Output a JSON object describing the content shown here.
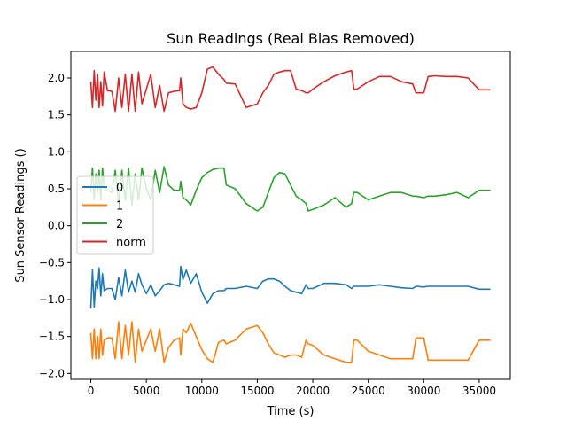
{
  "chart_data": {
    "type": "line",
    "title": "Sun Readings (Real Bias Removed)",
    "xlabel": "Time (s)",
    "ylabel": "Sun Sensor Readings ()",
    "xlim": [
      -1800,
      37800
    ],
    "ylim": [
      -2.08,
      2.36
    ],
    "x_ticks": [
      0,
      5000,
      10000,
      15000,
      20000,
      25000,
      30000,
      35000
    ],
    "x_tick_labels": [
      "0",
      "5000",
      "10000",
      "15000",
      "20000",
      "25000",
      "30000",
      "35000"
    ],
    "y_ticks": [
      -2.0,
      -1.5,
      -1.0,
      -0.5,
      0.0,
      0.5,
      1.0,
      1.5,
      2.0
    ],
    "y_tick_labels": [
      "−2.0",
      "−1.5",
      "−1.0",
      "−0.5",
      "0.0",
      "0.5",
      "1.0",
      "1.5",
      "2.0"
    ],
    "grid": false,
    "legend_position": "center-left",
    "series": [
      {
        "name": "0",
        "color": "#1f77b4",
        "x": [
          0,
          150,
          300,
          450,
          600,
          750,
          900,
          1050,
          1200,
          1500,
          1900,
          2200,
          2500,
          2800,
          3100,
          3400,
          3700,
          4000,
          4300,
          4600,
          5000,
          5400,
          5800,
          6200,
          6600,
          7000,
          7500,
          8000,
          8100,
          8300,
          8600,
          9000,
          9500,
          10000,
          10500,
          11000,
          11500,
          12000,
          12200,
          13000,
          14000,
          15000,
          15500,
          16000,
          16500,
          17000,
          17500,
          18000,
          18500,
          19000,
          19400,
          19600,
          20000,
          21000,
          22000,
          23000,
          23500,
          23700,
          24000,
          25000,
          26000,
          27000,
          28000,
          29000,
          29300,
          30000,
          30400,
          31000,
          32000,
          33000,
          34000,
          35000,
          36000
        ],
        "y": [
          -1.12,
          -0.6,
          -1.1,
          -0.75,
          -0.85,
          -0.57,
          -0.95,
          -0.65,
          -0.88,
          -0.85,
          -0.85,
          -1.0,
          -0.7,
          -0.95,
          -0.6,
          -0.9,
          -0.75,
          -0.9,
          -0.65,
          -0.8,
          -0.92,
          -0.8,
          -0.95,
          -0.88,
          -0.8,
          -0.78,
          -0.8,
          -0.82,
          -0.55,
          -0.73,
          -0.6,
          -0.78,
          -0.65,
          -0.9,
          -1.05,
          -0.92,
          -0.88,
          -0.88,
          -0.85,
          -0.85,
          -0.82,
          -0.85,
          -0.75,
          -0.72,
          -0.72,
          -0.75,
          -0.82,
          -0.88,
          -0.9,
          -0.92,
          -0.8,
          -0.85,
          -0.85,
          -0.78,
          -0.78,
          -0.8,
          -0.85,
          -0.82,
          -0.82,
          -0.82,
          -0.8,
          -0.82,
          -0.84,
          -0.85,
          -0.82,
          -0.83,
          -0.82,
          -0.82,
          -0.82,
          -0.82,
          -0.82,
          -0.86,
          -0.86
        ]
      },
      {
        "name": "1",
        "color": "#ff7f0e",
        "x": [
          0,
          150,
          300,
          450,
          600,
          750,
          900,
          1050,
          1200,
          1500,
          1900,
          2200,
          2500,
          2800,
          3100,
          3400,
          3700,
          4000,
          4300,
          4600,
          5000,
          5400,
          5800,
          6200,
          6600,
          7000,
          7500,
          8000,
          8100,
          8300,
          8600,
          9000,
          9500,
          10000,
          10500,
          11000,
          11500,
          12000,
          12200,
          13000,
          14000,
          15000,
          15500,
          16000,
          16500,
          17000,
          17500,
          18000,
          18500,
          19000,
          19400,
          19600,
          20000,
          21000,
          22000,
          23000,
          23500,
          23700,
          24000,
          25000,
          26000,
          27000,
          28000,
          29000,
          29300,
          30000,
          30400,
          31000,
          32000,
          33000,
          34000,
          35000,
          36000
        ],
        "y": [
          -1.45,
          -1.8,
          -1.4,
          -1.8,
          -1.5,
          -1.8,
          -1.4,
          -1.75,
          -1.55,
          -1.52,
          -1.52,
          -1.8,
          -1.3,
          -1.8,
          -1.35,
          -1.75,
          -1.3,
          -1.85,
          -1.4,
          -1.7,
          -1.55,
          -1.4,
          -1.7,
          -1.4,
          -1.85,
          -1.65,
          -1.55,
          -1.52,
          -1.75,
          -1.4,
          -1.45,
          -1.32,
          -1.5,
          -1.68,
          -1.8,
          -1.85,
          -1.58,
          -1.55,
          -1.6,
          -1.55,
          -1.4,
          -1.35,
          -1.45,
          -1.6,
          -1.72,
          -1.75,
          -1.78,
          -1.75,
          -1.75,
          -1.78,
          -1.55,
          -1.6,
          -1.62,
          -1.75,
          -1.8,
          -1.85,
          -1.85,
          -1.55,
          -1.55,
          -1.7,
          -1.75,
          -1.8,
          -1.8,
          -1.8,
          -1.52,
          -1.52,
          -1.82,
          -1.82,
          -1.82,
          -1.82,
          -1.82,
          -1.55,
          -1.55
        ]
      },
      {
        "name": "2",
        "color": "#2ca02c",
        "x": [
          0,
          150,
          300,
          450,
          600,
          750,
          900,
          1050,
          1200,
          1500,
          1900,
          2200,
          2500,
          2800,
          3100,
          3400,
          3700,
          4000,
          4300,
          4600,
          5000,
          5400,
          5800,
          6200,
          6600,
          7000,
          7500,
          8000,
          8100,
          8300,
          8600,
          9000,
          9500,
          10000,
          10500,
          11000,
          11500,
          12000,
          12200,
          13000,
          14000,
          15000,
          15500,
          16000,
          16500,
          17000,
          17500,
          18000,
          18500,
          19000,
          19400,
          19600,
          20000,
          21000,
          22000,
          23000,
          23500,
          23700,
          24000,
          25000,
          26000,
          27000,
          28000,
          29000,
          29300,
          30000,
          30400,
          31000,
          32000,
          33000,
          34000,
          35000,
          36000
        ],
        "y": [
          0.45,
          0.78,
          0.35,
          0.7,
          0.45,
          0.75,
          0.35,
          0.78,
          0.5,
          0.48,
          0.45,
          0.75,
          0.3,
          0.75,
          0.35,
          0.78,
          0.28,
          0.7,
          0.35,
          0.78,
          0.5,
          0.35,
          0.75,
          0.45,
          0.8,
          0.55,
          0.48,
          0.48,
          0.6,
          0.38,
          0.35,
          0.28,
          0.48,
          0.65,
          0.72,
          0.76,
          0.78,
          0.78,
          0.55,
          0.5,
          0.3,
          0.2,
          0.25,
          0.45,
          0.65,
          0.72,
          0.7,
          0.55,
          0.4,
          0.35,
          0.3,
          0.2,
          0.22,
          0.28,
          0.38,
          0.25,
          0.3,
          0.45,
          0.45,
          0.35,
          0.4,
          0.45,
          0.45,
          0.4,
          0.4,
          0.38,
          0.4,
          0.4,
          0.42,
          0.45,
          0.38,
          0.48,
          0.48
        ]
      },
      {
        "name": "norm",
        "color": "#d62728",
        "x": [
          0,
          150,
          300,
          450,
          600,
          750,
          900,
          1050,
          1200,
          1500,
          1900,
          2200,
          2500,
          2800,
          3100,
          3400,
          3700,
          4000,
          4300,
          4600,
          5000,
          5400,
          5800,
          6200,
          6600,
          7000,
          7500,
          8000,
          8100,
          8300,
          8600,
          9000,
          9500,
          10000,
          10500,
          11000,
          11500,
          12000,
          12200,
          13000,
          14000,
          15000,
          15500,
          16000,
          16500,
          17000,
          17500,
          18000,
          18500,
          19000,
          19400,
          19600,
          20000,
          21000,
          22000,
          23000,
          23500,
          23700,
          24000,
          25000,
          26000,
          27000,
          28000,
          29000,
          29300,
          30000,
          30400,
          31000,
          32000,
          33000,
          34000,
          35000,
          36000
        ],
        "y": [
          1.95,
          1.6,
          2.1,
          1.7,
          2.05,
          1.6,
          1.95,
          1.62,
          2.08,
          1.83,
          1.82,
          1.55,
          2.0,
          1.6,
          2.05,
          1.55,
          2.05,
          1.55,
          2.08,
          1.65,
          1.85,
          2.05,
          1.6,
          1.9,
          1.55,
          1.8,
          1.82,
          1.83,
          2.0,
          1.65,
          1.6,
          1.58,
          1.6,
          1.8,
          2.12,
          2.15,
          2.05,
          1.98,
          1.93,
          1.92,
          1.6,
          1.65,
          1.8,
          1.9,
          2.05,
          2.08,
          2.1,
          2.1,
          1.85,
          1.83,
          1.8,
          1.8,
          1.85,
          1.95,
          2.03,
          2.08,
          2.1,
          1.85,
          1.85,
          1.95,
          2.02,
          2.02,
          1.95,
          1.92,
          1.8,
          1.8,
          2.02,
          2.03,
          2.02,
          2.02,
          2.0,
          1.84,
          1.84
        ]
      }
    ]
  }
}
